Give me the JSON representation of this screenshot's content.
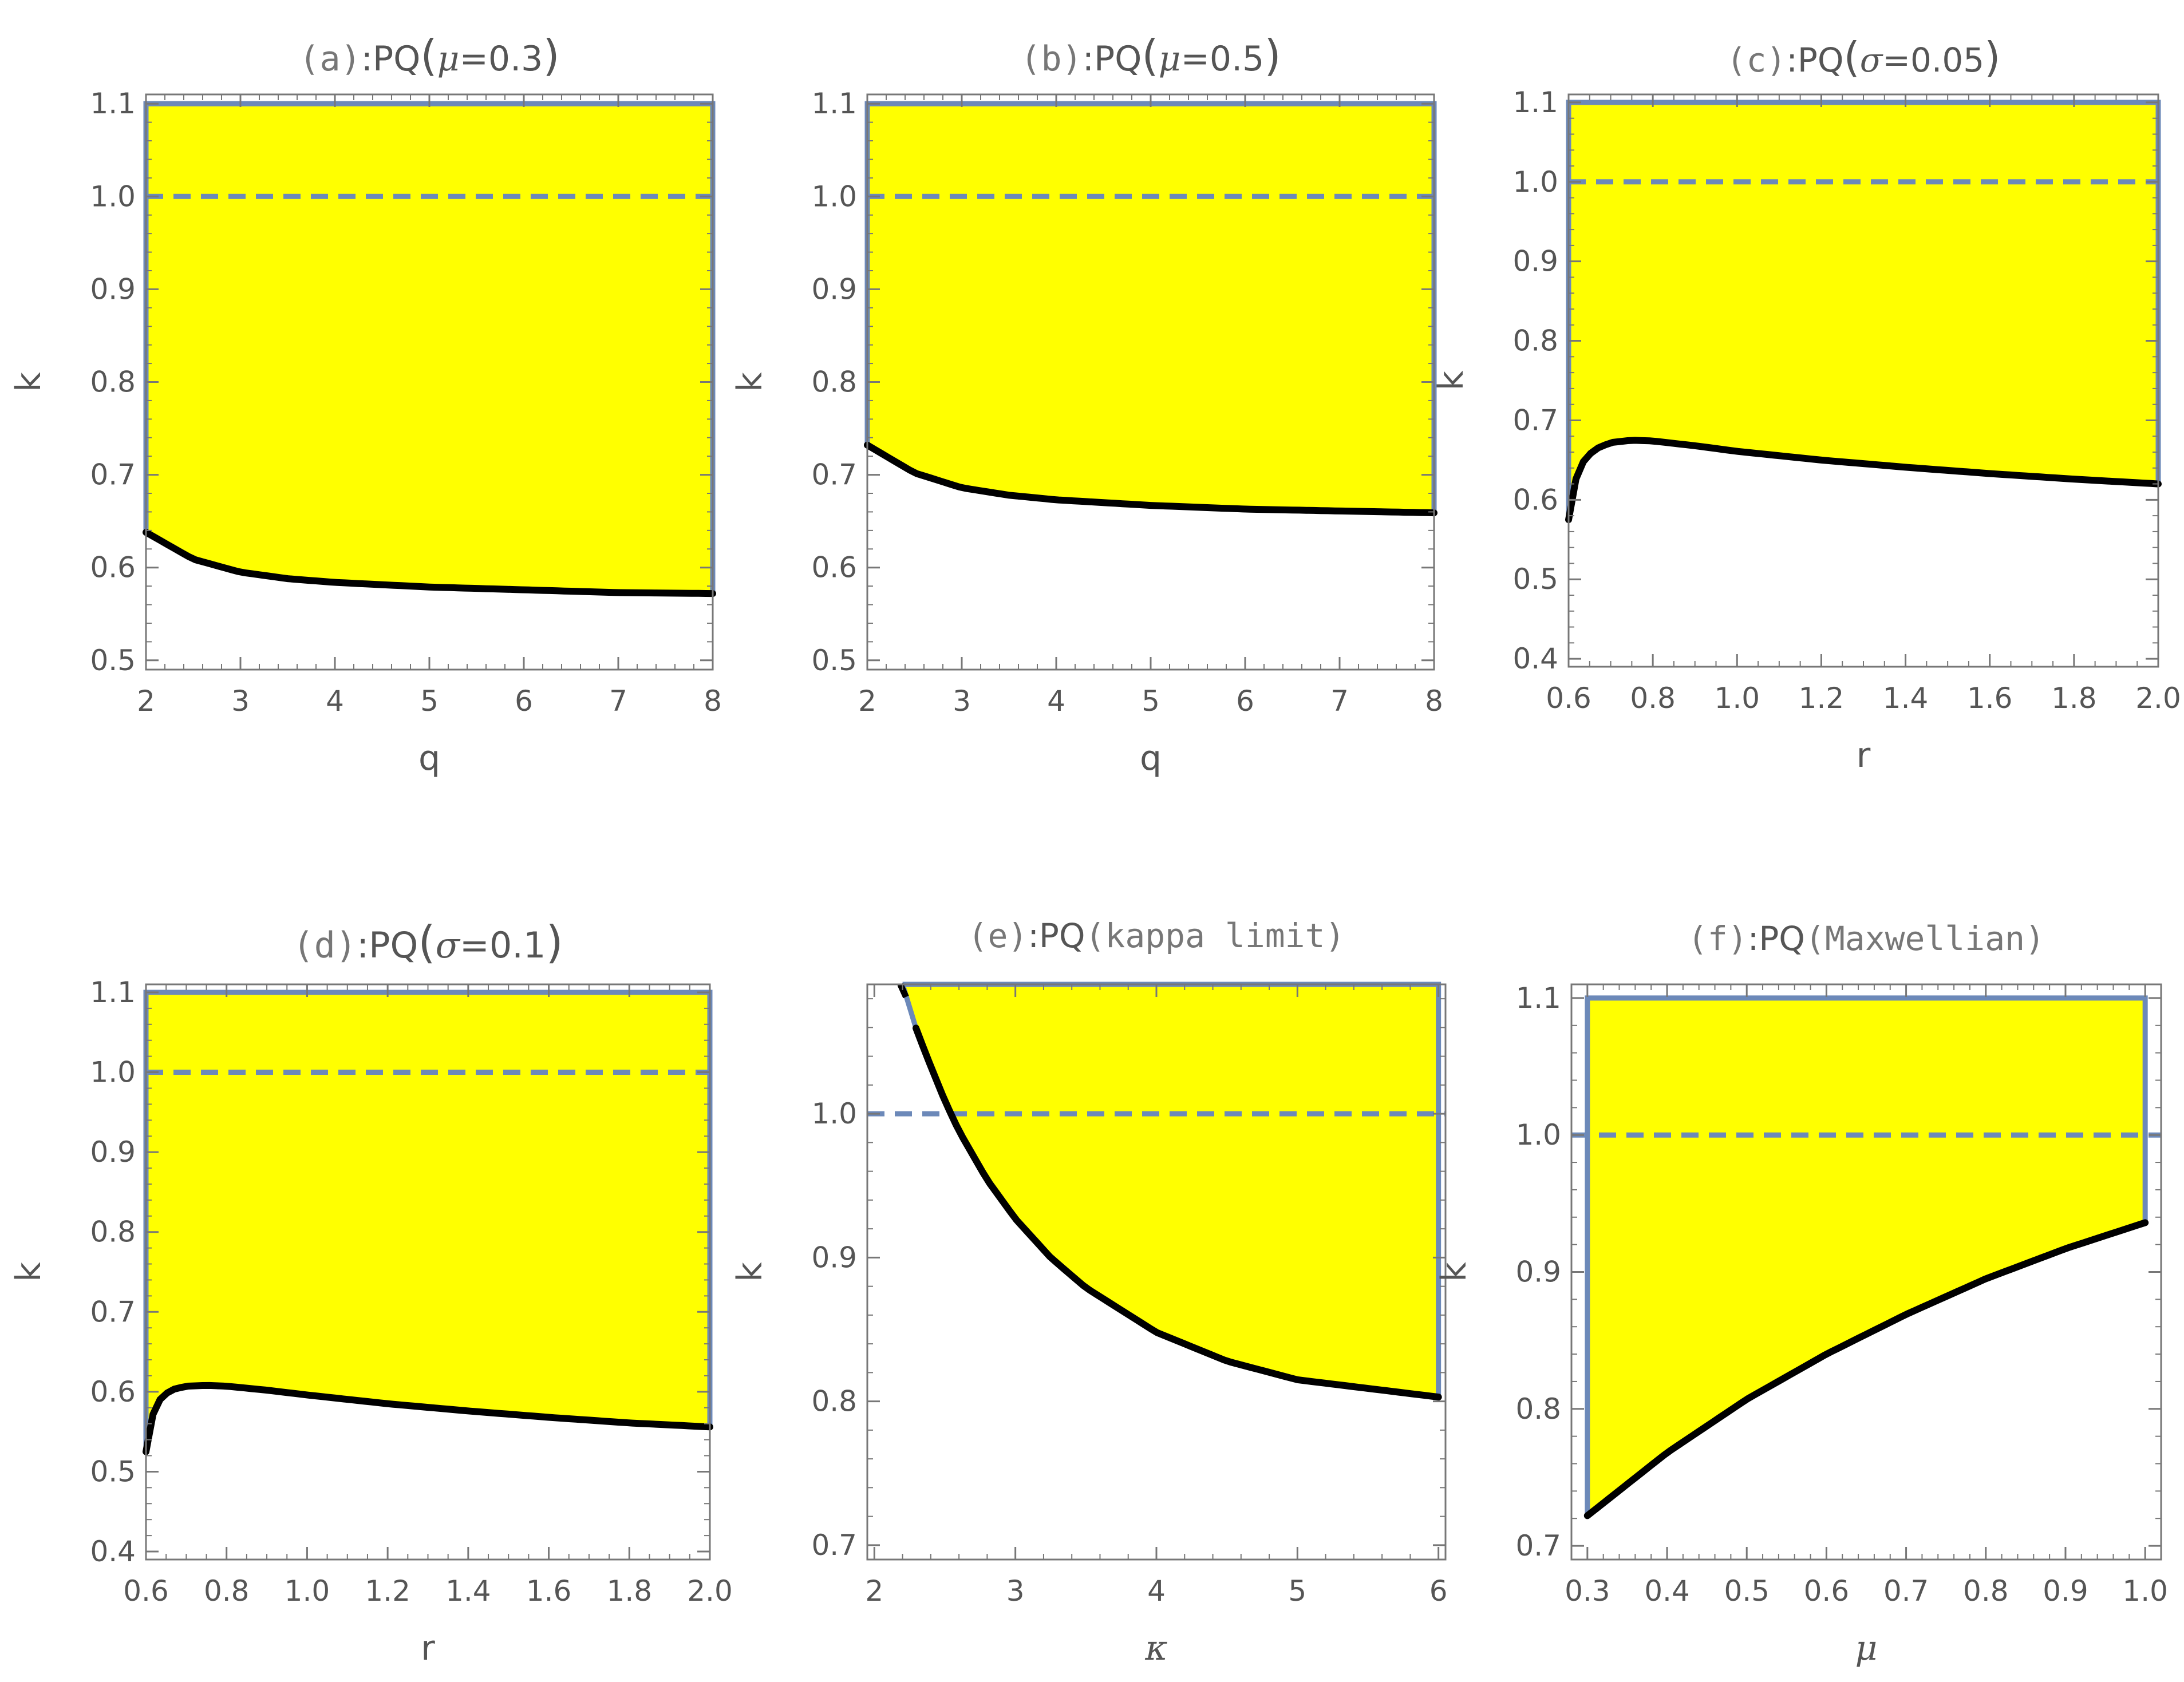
{
  "colors": {
    "fill": "#ffff00",
    "boundary": "#6c89b9",
    "curve": "#000000",
    "frame": "#777777",
    "text": "#555555"
  },
  "chart_data": [
    {
      "id": "a",
      "type": "region",
      "title": {
        "prefix": "(a)",
        "sep": ":PQ",
        "paren_open": "(",
        "param_name": "μ",
        "param_value": "=0.3",
        "paren_close": ")"
      },
      "xlabel": "q",
      "ylabel": "k",
      "xlabel_style": "sans",
      "xlim": [
        2,
        8
      ],
      "ylim": [
        0.49,
        1.11
      ],
      "xticks": [
        2,
        3,
        4,
        5,
        6,
        7,
        8
      ],
      "xtick_labels": [
        "2",
        "3",
        "4",
        "5",
        "6",
        "7",
        "8"
      ],
      "yticks": [
        0.5,
        0.6,
        0.7,
        0.8,
        0.9,
        1.0,
        1.1
      ],
      "ytick_labels": [
        "0.5",
        "0.6",
        "0.7",
        "0.8",
        "0.9",
        "1.0",
        "1.1"
      ],
      "x_minor": 0.2,
      "y_minor": 0.02,
      "threshold": 1.0,
      "upper": 1.1,
      "curve": {
        "x": [
          2,
          2.5,
          3,
          3.5,
          4,
          5,
          6,
          7,
          8
        ],
        "y": [
          0.638,
          0.609,
          0.595,
          0.588,
          0.584,
          0.579,
          0.576,
          0.573,
          0.572
        ]
      }
    },
    {
      "id": "b",
      "type": "region",
      "title": {
        "prefix": "(b)",
        "sep": ":PQ",
        "paren_open": "(",
        "param_name": "μ",
        "param_value": "=0.5",
        "paren_close": ")"
      },
      "xlabel": "q",
      "ylabel": "k",
      "xlabel_style": "sans",
      "xlim": [
        2,
        8
      ],
      "ylim": [
        0.49,
        1.11
      ],
      "xticks": [
        2,
        3,
        4,
        5,
        6,
        7,
        8
      ],
      "xtick_labels": [
        "2",
        "3",
        "4",
        "5",
        "6",
        "7",
        "8"
      ],
      "yticks": [
        0.5,
        0.6,
        0.7,
        0.8,
        0.9,
        1.0,
        1.1
      ],
      "ytick_labels": [
        "0.5",
        "0.6",
        "0.7",
        "0.8",
        "0.9",
        "1.0",
        "1.1"
      ],
      "x_minor": 0.2,
      "y_minor": 0.02,
      "threshold": 1.0,
      "upper": 1.1,
      "curve": {
        "x": [
          2,
          2.5,
          3,
          3.5,
          4,
          5,
          6,
          7,
          8
        ],
        "y": [
          0.732,
          0.702,
          0.686,
          0.678,
          0.673,
          0.667,
          0.663,
          0.661,
          0.659
        ]
      }
    },
    {
      "id": "c",
      "type": "region",
      "title": {
        "prefix": "(c)",
        "sep": ":PQ",
        "paren_open": "(",
        "param_name": "σ",
        "param_value": "=0.05",
        "paren_close": ")"
      },
      "xlabel": "r",
      "ylabel": "k",
      "xlabel_style": "sans",
      "xlim": [
        0.6,
        2.0
      ],
      "ylim": [
        0.39,
        1.11
      ],
      "xticks": [
        0.6,
        0.8,
        1.0,
        1.2,
        1.4,
        1.6,
        1.8,
        2.0
      ],
      "xtick_labels": [
        "0.6",
        "0.8",
        "1.0",
        "1.2",
        "1.4",
        "1.6",
        "1.8",
        "2.0"
      ],
      "yticks": [
        0.4,
        0.5,
        0.6,
        0.7,
        0.8,
        0.9,
        1.0,
        1.1
      ],
      "ytick_labels": [
        "0.4",
        "0.5",
        "0.6",
        "0.7",
        "0.8",
        "0.9",
        "1.0",
        "1.1"
      ],
      "x_minor": 0.05,
      "y_minor": 0.02,
      "threshold": 1.0,
      "upper": 1.1,
      "curve": {
        "x": [
          0.6,
          0.61,
          0.63,
          0.66,
          0.7,
          0.75,
          0.8,
          0.9,
          1.0,
          1.2,
          1.4,
          1.6,
          1.8,
          2.0
        ],
        "y": [
          0.575,
          0.615,
          0.645,
          0.663,
          0.672,
          0.675,
          0.674,
          0.668,
          0.661,
          0.65,
          0.641,
          0.633,
          0.626,
          0.62
        ]
      }
    },
    {
      "id": "d",
      "type": "region",
      "title": {
        "prefix": "(d)",
        "sep": ":PQ",
        "paren_open": "(",
        "param_name": "σ",
        "param_value": "=0.1",
        "paren_close": ")"
      },
      "xlabel": "r",
      "ylabel": "k",
      "xlabel_style": "sans",
      "xlim": [
        0.6,
        2.0
      ],
      "ylim": [
        0.39,
        1.11
      ],
      "xticks": [
        0.6,
        0.8,
        1.0,
        1.2,
        1.4,
        1.6,
        1.8,
        2.0
      ],
      "xtick_labels": [
        "0.6",
        "0.8",
        "1.0",
        "1.2",
        "1.4",
        "1.6",
        "1.8",
        "2.0"
      ],
      "yticks": [
        0.4,
        0.5,
        0.6,
        0.7,
        0.8,
        0.9,
        1.0,
        1.1
      ],
      "ytick_labels": [
        "0.4",
        "0.5",
        "0.6",
        "0.7",
        "0.8",
        "0.9",
        "1.0",
        "1.1"
      ],
      "x_minor": 0.05,
      "y_minor": 0.02,
      "threshold": 1.0,
      "upper": 1.1,
      "curve": {
        "x": [
          0.6,
          0.61,
          0.63,
          0.66,
          0.7,
          0.75,
          0.8,
          0.9,
          1.0,
          1.2,
          1.4,
          1.6,
          1.8,
          2.0
        ],
        "y": [
          0.525,
          0.562,
          0.588,
          0.602,
          0.607,
          0.608,
          0.607,
          0.602,
          0.596,
          0.585,
          0.576,
          0.568,
          0.561,
          0.556
        ]
      }
    },
    {
      "id": "e",
      "type": "region",
      "title": {
        "prefix": "(e)",
        "sep": ":PQ",
        "paren_open": "",
        "param_name": "",
        "param_value": "(kappa limit)",
        "paren_close": ""
      },
      "xlabel": "κ",
      "ylabel": "k",
      "xlabel_style": "serif",
      "xlim": [
        1.95,
        6.05
      ],
      "ylim": [
        0.69,
        1.09
      ],
      "xticks": [
        2,
        3,
        4,
        5,
        6
      ],
      "xtick_labels": [
        "2",
        "3",
        "4",
        "5",
        "6"
      ],
      "yticks": [
        0.7,
        0.8,
        0.9,
        1.0
      ],
      "ytick_labels": [
        "0.7",
        "0.8",
        "0.9",
        "1.0"
      ],
      "x_minor": 0.2,
      "y_minor": 0.02,
      "threshold": 1.0,
      "upper": 1.09,
      "curve": {
        "x": [
          2.2,
          2.3,
          2.4,
          2.5,
          2.6,
          2.8,
          3.0,
          3.25,
          3.5,
          4.0,
          4.5,
          5.0,
          5.5,
          6.0
        ],
        "y": [
          1.09,
          1.058,
          1.033,
          1.009,
          0.988,
          0.954,
          0.927,
          0.9,
          0.879,
          0.848,
          0.828,
          0.815,
          0.809,
          0.803
        ]
      }
    },
    {
      "id": "f",
      "type": "region",
      "title": {
        "prefix": "(f)",
        "sep": ":PQ",
        "paren_open": "",
        "param_name": "",
        "param_value": "(Maxwellian)",
        "paren_close": ""
      },
      "xlabel": "μ",
      "ylabel": "k",
      "xlabel_style": "serif",
      "xlim": [
        0.28,
        1.02
      ],
      "ylim": [
        0.69,
        1.11
      ],
      "xticks": [
        0.3,
        0.4,
        0.5,
        0.6,
        0.7,
        0.8,
        0.9,
        1.0
      ],
      "xtick_labels": [
        "0.3",
        "0.4",
        "0.5",
        "0.6",
        "0.7",
        "0.8",
        "0.9",
        "1.0"
      ],
      "yticks": [
        0.7,
        0.8,
        0.9,
        1.0,
        1.1
      ],
      "ytick_labels": [
        "0.7",
        "0.8",
        "0.9",
        "1.0",
        "1.1"
      ],
      "x_minor": 0.02,
      "y_minor": 0.02,
      "threshold": 1.0,
      "upper": 1.1,
      "curve": {
        "x": [
          0.3,
          0.4,
          0.5,
          0.6,
          0.7,
          0.8,
          0.9,
          1.0
        ],
        "y": [
          0.722,
          0.768,
          0.807,
          0.84,
          0.869,
          0.895,
          0.917,
          0.936
        ]
      }
    }
  ]
}
